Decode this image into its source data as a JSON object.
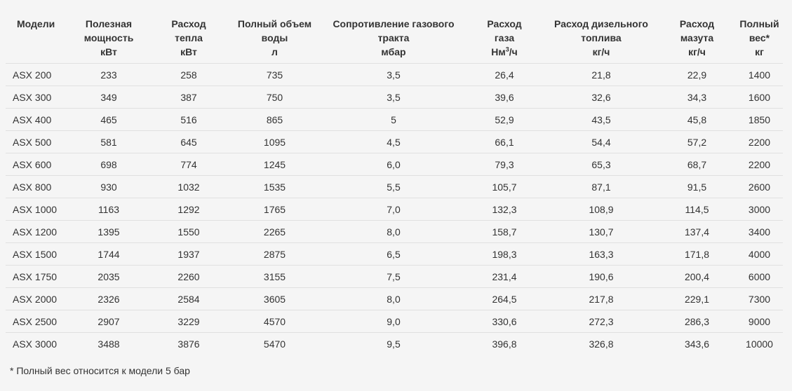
{
  "headers": [
    [
      "Модели"
    ],
    [
      "Полезная",
      "мощность",
      "кВт"
    ],
    [
      "Расход",
      "тепла",
      "кВт"
    ],
    [
      "Полный объем",
      "воды",
      "л"
    ],
    [
      "Сопротивление газового",
      "тракта",
      "мбар"
    ],
    [
      "Расход",
      "газа",
      "Нм",
      "3",
      "/ч"
    ],
    [
      "Расход дизельного",
      "топлива",
      "кг/ч"
    ],
    [
      "Расход",
      "мазута",
      "кг/ч"
    ],
    [
      "Полный",
      "вес*",
      "кг"
    ]
  ],
  "rows": [
    [
      "ASX 200",
      "233",
      "258",
      "735",
      "3,5",
      "26,4",
      "21,8",
      "22,9",
      "1400"
    ],
    [
      "ASX 300",
      "349",
      "387",
      "750",
      "3,5",
      "39,6",
      "32,6",
      "34,3",
      "1600"
    ],
    [
      "ASX 400",
      "465",
      "516",
      "865",
      "5",
      "52,9",
      "43,5",
      "45,8",
      "1850"
    ],
    [
      "ASX 500",
      "581",
      "645",
      "1095",
      "4,5",
      "66,1",
      "54,4",
      "57,2",
      "2200"
    ],
    [
      "ASX 600",
      "698",
      "774",
      "1245",
      "6,0",
      "79,3",
      "65,3",
      "68,7",
      "2200"
    ],
    [
      "ASX 800",
      "930",
      "1032",
      "1535",
      "5,5",
      "105,7",
      "87,1",
      "91,5",
      "2600"
    ],
    [
      "ASX 1000",
      "1163",
      "1292",
      "1765",
      "7,0",
      "132,3",
      "108,9",
      "114,5",
      "3000"
    ],
    [
      "ASX 1200",
      "1395",
      "1550",
      "2265",
      "8,0",
      "158,7",
      "130,7",
      "137,4",
      "3400"
    ],
    [
      "ASX 1500",
      "1744",
      "1937",
      "2875",
      "6,5",
      "198,3",
      "163,3",
      "171,8",
      "4000"
    ],
    [
      "ASX 1750",
      "2035",
      "2260",
      "3155",
      "7,5",
      "231,4",
      "190,6",
      "200,4",
      "6000"
    ],
    [
      "ASX 2000",
      "2326",
      "2584",
      "3605",
      "8,0",
      "264,5",
      "217,8",
      "229,1",
      "7300"
    ],
    [
      "ASX 2500",
      "2907",
      "3229",
      "4570",
      "9,0",
      "330,6",
      "272,3",
      "286,3",
      "9000"
    ],
    [
      "ASX 3000",
      "3488",
      "3876",
      "5470",
      "9,5",
      "396,8",
      "326,8",
      "343,6",
      "10000"
    ]
  ],
  "footnote": "* Полный вес относится к модели 5 бар"
}
